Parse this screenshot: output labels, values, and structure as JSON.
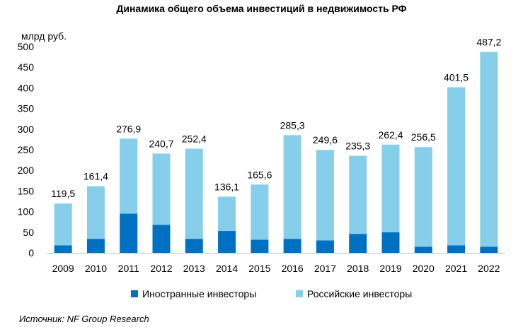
{
  "chart_data": {
    "type": "bar",
    "stacked": true,
    "title": "Динамика общего объема инвестиций в недвижимость РФ",
    "unit_label": "млрд руб.",
    "categories": [
      "2009",
      "2010",
      "2011",
      "2012",
      "2013",
      "2014",
      "2015",
      "2016",
      "2017",
      "2018",
      "2019",
      "2020",
      "2021",
      "2022"
    ],
    "totals": [
      119.5,
      161.4,
      276.9,
      240.7,
      252.4,
      136.1,
      165.6,
      285.3,
      249.6,
      235.3,
      262.4,
      256.5,
      401.5,
      487.2
    ],
    "total_labels": [
      "119,5",
      "161,4",
      "276,9",
      "240,7",
      "252,4",
      "136,1",
      "165,6",
      "285,3",
      "249,6",
      "235,3",
      "262,4",
      "256,5",
      "401,5",
      "487,2"
    ],
    "series": [
      {
        "name": "Иностранные инвесторы",
        "color": "#0070C0",
        "values": [
          18,
          34,
          95,
          68,
          34,
          53,
          32,
          34,
          30,
          46,
          50,
          15,
          18,
          15
        ]
      },
      {
        "name": "Российские инвесторы",
        "color": "#87CEEB",
        "values": [
          101.5,
          127.4,
          181.9,
          172.7,
          218.4,
          83.1,
          133.6,
          251.3,
          219.6,
          189.3,
          212.4,
          241.5,
          383.5,
          472.2
        ]
      }
    ],
    "ylim": [
      0,
      500
    ],
    "yticks": [
      0,
      50,
      100,
      150,
      200,
      250,
      300,
      350,
      400,
      450,
      500
    ],
    "grid": false,
    "legend_position": "bottom"
  },
  "source": "Источник: NF Group Research"
}
